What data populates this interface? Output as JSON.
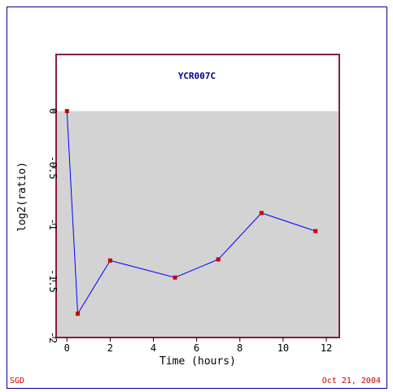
{
  "footer": {
    "left": "SGD",
    "right": "Oct 21, 2004"
  },
  "chart_data": {
    "type": "line",
    "title": "YCR007C",
    "xlabel": "Time (hours)",
    "ylabel": "log2(ratio)",
    "xlim": [
      -0.5,
      12.6
    ],
    "ylim": [
      -2,
      0.5
    ],
    "xticks": [
      0,
      2,
      4,
      6,
      8,
      10,
      12
    ],
    "yticks": [
      0,
      -0.5,
      -1,
      -1.5,
      -2
    ],
    "ytick_labels": [
      "0",
      "-0.5",
      "-1",
      "-1.5",
      "-2"
    ],
    "shaded_region": {
      "from": -2,
      "to": 0
    },
    "series": [
      {
        "x": [
          0,
          0.5,
          2,
          5,
          7,
          9,
          11.5
        ],
        "y": [
          0,
          -1.79,
          -1.32,
          -1.47,
          -1.31,
          -0.9,
          -1.06
        ]
      }
    ],
    "colors": {
      "frame": "#00008b",
      "plot_border": "#8b1a4a",
      "shade": "#d3d3d3",
      "line": "#0000ff",
      "marker": "#cc0000",
      "title": "#00008b",
      "footer": "#cc0000"
    },
    "grid": false
  }
}
